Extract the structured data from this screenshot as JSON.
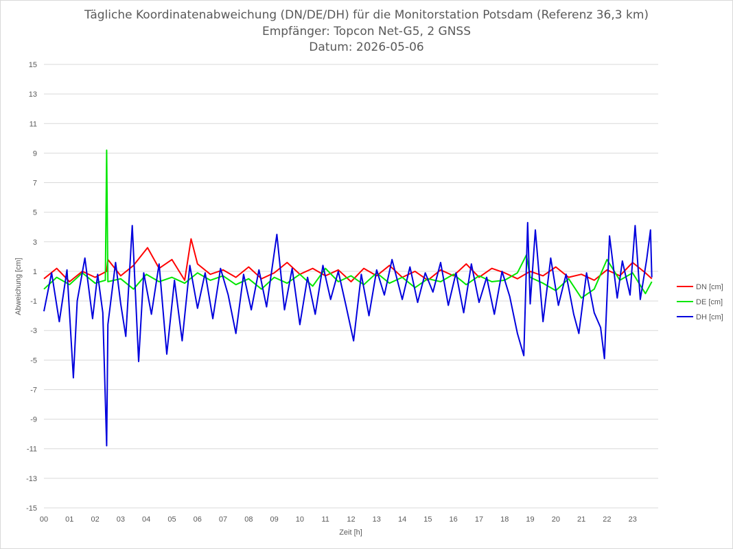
{
  "chart_data": {
    "type": "line",
    "title": "Tägliche Koordinatenabweichung (DN/DE/DH) für die Monitorstation Potsdam (Referenz 36,3 km)",
    "subtitle": "Empfänger: Topcon Net-G5, 2 GNSS",
    "date_line": "Datum: 2026-05-06",
    "xlabel": "Zeit [h]",
    "ylabel": "Abweichung [cm]",
    "xlim": [
      0,
      24
    ],
    "ylim": [
      -15,
      15
    ],
    "y_ticks": [
      -15,
      -13,
      -11,
      -9,
      -7,
      -5,
      -3,
      -1,
      1,
      3,
      5,
      7,
      9,
      11,
      13,
      15
    ],
    "x_tick_labels": [
      "00",
      "01",
      "02",
      "03",
      "04",
      "05",
      "06",
      "07",
      "08",
      "09",
      "10",
      "11",
      "12",
      "13",
      "14",
      "15",
      "16",
      "17",
      "18",
      "19",
      "20",
      "21",
      "22",
      "23"
    ],
    "grid": "horizontal",
    "legend_position": "right",
    "series": [
      {
        "name": "DN [cm]",
        "color": "#ff0000",
        "x": [
          0,
          0.5,
          1,
          1.5,
          2,
          2.45,
          2.5,
          3,
          3.5,
          4.05,
          4.5,
          5,
          5.5,
          5.75,
          6,
          6.5,
          7,
          7.5,
          8,
          8.5,
          9,
          9.5,
          10,
          10.5,
          11,
          11.5,
          12,
          12.5,
          13,
          13.5,
          14,
          14.5,
          15,
          15.5,
          16,
          16.5,
          17,
          17.5,
          18,
          18.5,
          19,
          19.5,
          20,
          20.5,
          21,
          21.5,
          22,
          22.5,
          23,
          23.5,
          23.75
        ],
        "y": [
          0.5,
          1.2,
          0.3,
          1.0,
          0.6,
          1.0,
          1.8,
          0.7,
          1.4,
          2.6,
          1.2,
          1.8,
          0.4,
          3.2,
          1.5,
          0.8,
          1.1,
          0.6,
          1.3,
          0.5,
          0.9,
          1.6,
          0.8,
          1.2,
          0.7,
          1.1,
          0.3,
          1.2,
          0.7,
          1.4,
          0.6,
          1.0,
          0.4,
          1.1,
          0.7,
          1.5,
          0.6,
          1.2,
          0.9,
          0.5,
          1.0,
          0.7,
          1.3,
          0.6,
          0.8,
          0.4,
          1.1,
          0.7,
          1.6,
          0.9,
          0.5
        ]
      },
      {
        "name": "DE [cm]",
        "color": "#00e600",
        "x": [
          0,
          0.5,
          1,
          1.5,
          2,
          2.4,
          2.45,
          2.5,
          3,
          3.5,
          4,
          4.5,
          5,
          5.5,
          6,
          6.5,
          7,
          7.5,
          8,
          8.5,
          9,
          9.5,
          10,
          10.5,
          11,
          11.5,
          12,
          12.5,
          13,
          13.5,
          14,
          14.5,
          15,
          15.5,
          16,
          16.5,
          17,
          17.5,
          18,
          18.5,
          18.85,
          19,
          19.5,
          20,
          20.5,
          21,
          21.5,
          22,
          22.5,
          23,
          23.5,
          23.75
        ],
        "y": [
          -0.2,
          0.6,
          0.1,
          0.9,
          0.2,
          0.4,
          9.2,
          0.3,
          0.5,
          -0.2,
          0.8,
          0.3,
          0.6,
          0.2,
          0.9,
          0.4,
          0.7,
          0.1,
          0.5,
          -0.2,
          0.6,
          0.2,
          0.8,
          0.0,
          1.2,
          0.3,
          0.7,
          0.1,
          0.9,
          0.2,
          0.6,
          -0.1,
          0.5,
          0.3,
          0.8,
          0.1,
          0.7,
          0.3,
          0.4,
          0.9,
          2.1,
          0.6,
          0.2,
          -0.3,
          0.5,
          -0.8,
          -0.2,
          1.8,
          0.4,
          0.9,
          -0.5,
          0.3
        ]
      },
      {
        "name": "DH [cm]",
        "color": "#0000dd",
        "x": [
          0,
          0.3,
          0.6,
          0.9,
          1.15,
          1.3,
          1.6,
          1.9,
          2.1,
          2.3,
          2.45,
          2.5,
          2.8,
          3.0,
          3.2,
          3.45,
          3.7,
          3.9,
          4.2,
          4.5,
          4.8,
          5.1,
          5.4,
          5.7,
          6.0,
          6.3,
          6.6,
          6.9,
          7.2,
          7.5,
          7.8,
          8.1,
          8.4,
          8.7,
          9.1,
          9.4,
          9.7,
          10.0,
          10.3,
          10.6,
          10.9,
          11.2,
          11.5,
          11.8,
          12.1,
          12.4,
          12.7,
          13.0,
          13.3,
          13.6,
          14.0,
          14.3,
          14.6,
          14.9,
          15.2,
          15.5,
          15.8,
          16.1,
          16.4,
          16.7,
          17.0,
          17.3,
          17.6,
          17.9,
          18.2,
          18.5,
          18.75,
          18.9,
          19.0,
          19.2,
          19.5,
          19.8,
          20.1,
          20.4,
          20.7,
          20.9,
          21.2,
          21.5,
          21.75,
          21.9,
          22.1,
          22.4,
          22.6,
          22.9,
          23.1,
          23.3,
          23.55,
          23.7,
          23.75
        ],
        "y": [
          -1.7,
          0.9,
          -2.4,
          1.1,
          -6.2,
          -1.0,
          1.9,
          -2.2,
          0.8,
          -1.8,
          -10.8,
          -2.6,
          1.6,
          -1.2,
          -3.4,
          4.1,
          -5.1,
          0.9,
          -1.9,
          1.5,
          -4.6,
          0.4,
          -3.7,
          1.4,
          -1.5,
          0.9,
          -2.2,
          1.2,
          -0.6,
          -3.2,
          0.8,
          -1.6,
          1.1,
          -1.4,
          3.5,
          -1.6,
          1.2,
          -2.6,
          0.6,
          -1.9,
          1.4,
          -0.9,
          1.0,
          -1.3,
          -3.7,
          0.8,
          -2.0,
          1.1,
          -0.6,
          1.8,
          -0.9,
          1.3,
          -1.1,
          0.9,
          -0.4,
          1.6,
          -1.3,
          0.9,
          -1.8,
          1.5,
          -1.1,
          0.6,
          -1.9,
          1.0,
          -0.7,
          -3.2,
          -4.7,
          4.3,
          -1.2,
          3.8,
          -2.4,
          1.9,
          -1.3,
          0.8,
          -1.9,
          -3.2,
          0.9,
          -1.8,
          -2.8,
          -4.9,
          3.4,
          -0.8,
          1.7,
          -0.6,
          4.1,
          -0.9,
          1.8,
          3.8,
          0.6
        ]
      }
    ]
  }
}
